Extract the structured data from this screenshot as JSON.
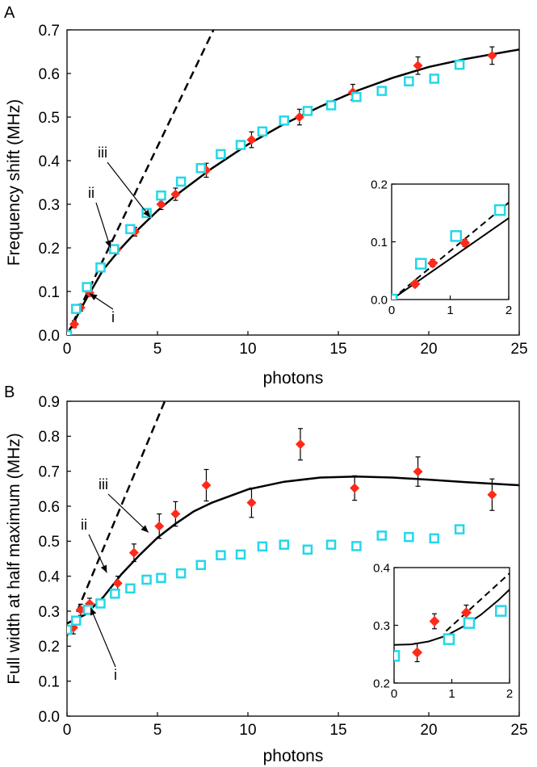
{
  "chart_data": [
    {
      "type": "scatter",
      "panel_label": "A",
      "xlabel": "photons",
      "ylabel": "Frequency shift (MHz)",
      "xlim": [
        0,
        25
      ],
      "ylim": [
        0,
        0.7
      ],
      "xticks": [
        "0",
        "5",
        "10",
        "15",
        "20",
        "25"
      ],
      "yticks": [
        "0.0",
        "0.1",
        "0.2",
        "0.3",
        "0.4",
        "0.5",
        "0.6",
        "0.7"
      ],
      "annotations": [
        {
          "text": "i",
          "points_to": [
            1.25,
            0.095
          ]
        },
        {
          "text": "ii",
          "points_to": [
            2.4,
            0.2
          ]
        },
        {
          "text": "iii",
          "points_to": [
            4.6,
            0.27
          ]
        }
      ],
      "series": [
        {
          "name": "red diamonds",
          "marker": "diamond",
          "color": "#ff2a1a",
          "x": [
            0.4,
            0.75,
            1.25,
            2.75,
            3.75,
            5.2,
            6.0,
            7.7,
            10.2,
            12.85,
            15.8,
            19.4,
            23.5
          ],
          "y": [
            0.025,
            0.063,
            0.097,
            0.196,
            0.237,
            0.3,
            0.323,
            0.378,
            0.448,
            0.5,
            0.557,
            0.618,
            0.641
          ],
          "err": [
            0.008,
            0.008,
            0.008,
            0.01,
            0.01,
            0.012,
            0.014,
            0.016,
            0.018,
            0.018,
            0.018,
            0.02,
            0.02
          ]
        },
        {
          "name": "cyan squares",
          "marker": "square",
          "color": "#22d8e8",
          "x": [
            0,
            0.5,
            1.1,
            1.85,
            2.6,
            3.5,
            4.4,
            5.2,
            6.3,
            7.4,
            8.5,
            9.6,
            10.8,
            12.0,
            13.3,
            14.6,
            16.0,
            17.4,
            18.9,
            20.3,
            21.7
          ],
          "y": [
            0,
            0.06,
            0.11,
            0.155,
            0.197,
            0.243,
            0.28,
            0.32,
            0.352,
            0.383,
            0.415,
            0.436,
            0.467,
            0.492,
            0.514,
            0.527,
            0.546,
            0.56,
            0.582,
            0.588,
            0.62
          ]
        },
        {
          "name": "theory",
          "line": "solid",
          "color": "#000000",
          "x": [
            0,
            1,
            2,
            3,
            4,
            5,
            6,
            8,
            10,
            12,
            14,
            16,
            18,
            20,
            22,
            25
          ],
          "y": [
            0,
            0.078,
            0.15,
            0.2,
            0.245,
            0.285,
            0.32,
            0.382,
            0.437,
            0.484,
            0.524,
            0.56,
            0.59,
            0.615,
            0.633,
            0.655
          ]
        },
        {
          "name": "linear",
          "line": "dashed",
          "color": "#000000",
          "x": [
            0,
            8.1
          ],
          "y": [
            0,
            0.7
          ]
        }
      ],
      "inset": {
        "xlim": [
          0,
          2
        ],
        "ylim": [
          0,
          0.2
        ],
        "xticks": [
          "0",
          "1",
          "2"
        ],
        "yticks": [
          "0.0",
          "0.1",
          "0.2"
        ],
        "series": [
          {
            "name": "red diamonds",
            "marker": "diamond",
            "color": "#ff2a1a",
            "x": [
              0.4,
              0.7,
              1.25
            ],
            "y": [
              0.027,
              0.063,
              0.098
            ],
            "err": [
              0.005,
              0.006,
              0.006
            ]
          },
          {
            "name": "cyan squares",
            "marker": "square",
            "color": "#22d8e8",
            "x": [
              0,
              0.5,
              1.1,
              1.85
            ],
            "y": [
              0,
              0.062,
              0.11,
              0.155
            ]
          },
          {
            "name": "theory",
            "line": "solid",
            "color": "#000000",
            "x": [
              0,
              2
            ],
            "y": [
              0,
              0.141
            ]
          },
          {
            "name": "linear",
            "line": "dashed",
            "color": "#000000",
            "x": [
              0,
              2
            ],
            "y": [
              0,
              0.168
            ]
          }
        ]
      }
    },
    {
      "type": "scatter",
      "panel_label": "B",
      "xlabel": "photons",
      "ylabel": "Full width at half maximum (MHz)",
      "xlim": [
        0,
        25
      ],
      "ylim": [
        0,
        0.9
      ],
      "xticks": [
        "0",
        "5",
        "10",
        "15",
        "20",
        "25"
      ],
      "yticks": [
        "0.0",
        "0.1",
        "0.2",
        "0.3",
        "0.4",
        "0.5",
        "0.6",
        "0.7",
        "0.8",
        "0.9"
      ],
      "annotations": [
        {
          "text": "i",
          "points_to": [
            1.3,
            0.31
          ]
        },
        {
          "text": "ii",
          "points_to": [
            2.2,
            0.41
          ]
        },
        {
          "text": "iii",
          "points_to": [
            4.5,
            0.525
          ]
        }
      ],
      "series": [
        {
          "name": "red diamonds",
          "marker": "diamond",
          "color": "#ff2a1a",
          "x": [
            0.35,
            0.75,
            1.25,
            2.8,
            3.7,
            5.1,
            6.0,
            7.7,
            10.2,
            12.9,
            15.9,
            19.4,
            23.5
          ],
          "y": [
            0.253,
            0.304,
            0.321,
            0.38,
            0.467,
            0.543,
            0.578,
            0.66,
            0.61,
            0.777,
            0.652,
            0.699,
            0.633
          ],
          "err": [
            0.018,
            0.016,
            0.016,
            0.02,
            0.025,
            0.035,
            0.035,
            0.045,
            0.042,
            0.045,
            0.035,
            0.042,
            0.045
          ]
        },
        {
          "name": "cyan squares",
          "marker": "square",
          "color": "#22d8e8",
          "x": [
            0,
            0.5,
            1.15,
            1.85,
            2.65,
            3.5,
            4.4,
            5.2,
            6.3,
            7.4,
            8.5,
            9.6,
            10.8,
            12.0,
            13.3,
            14.6,
            16.0,
            17.4,
            18.9,
            20.3,
            21.7
          ],
          "y": [
            0.247,
            0.273,
            0.304,
            0.322,
            0.35,
            0.365,
            0.39,
            0.395,
            0.408,
            0.432,
            0.46,
            0.462,
            0.485,
            0.49,
            0.476,
            0.49,
            0.486,
            0.516,
            0.512,
            0.508,
            0.534
          ]
        },
        {
          "name": "theory",
          "line": "solid",
          "color": "#000000",
          "x": [
            0,
            1,
            2,
            3,
            4,
            5,
            6,
            7,
            8,
            10,
            12,
            14,
            16,
            18,
            20,
            22,
            25
          ],
          "y": [
            0.265,
            0.29,
            0.34,
            0.405,
            0.46,
            0.51,
            0.55,
            0.585,
            0.61,
            0.648,
            0.67,
            0.682,
            0.685,
            0.682,
            0.676,
            0.669,
            0.66
          ]
        },
        {
          "name": "linear",
          "line": "dashed",
          "color": "#000000",
          "x": [
            0,
            5.4
          ],
          "y": [
            0.23,
            0.9
          ]
        }
      ],
      "inset": {
        "xlim": [
          0,
          2
        ],
        "ylim": [
          0.2,
          0.4
        ],
        "xticks": [
          "0",
          "1",
          "2"
        ],
        "yticks": [
          "0.2",
          "0.3",
          "0.4"
        ],
        "series": [
          {
            "name": "red diamonds",
            "marker": "diamond",
            "color": "#ff2a1a",
            "x": [
              0.4,
              0.7,
              1.25
            ],
            "y": [
              0.253,
              0.307,
              0.322
            ],
            "err": [
              0.016,
              0.013,
              0.013
            ]
          },
          {
            "name": "cyan squares",
            "marker": "square",
            "color": "#22d8e8",
            "x": [
              0,
              0.95,
              1.3,
              1.85
            ],
            "y": [
              0.247,
              0.276,
              0.304,
              0.325
            ]
          },
          {
            "name": "theory",
            "line": "solid",
            "color": "#000000",
            "x": [
              0,
              0.3,
              0.6,
              0.9,
              1.2,
              1.5,
              1.8,
              2.0
            ],
            "y": [
              0.266,
              0.267,
              0.272,
              0.282,
              0.298,
              0.318,
              0.343,
              0.362
            ]
          },
          {
            "name": "linear",
            "line": "dashed",
            "color": "#000000",
            "x": [
              0.9,
              2.0
            ],
            "y": [
              0.29,
              0.39
            ]
          }
        ]
      }
    }
  ]
}
